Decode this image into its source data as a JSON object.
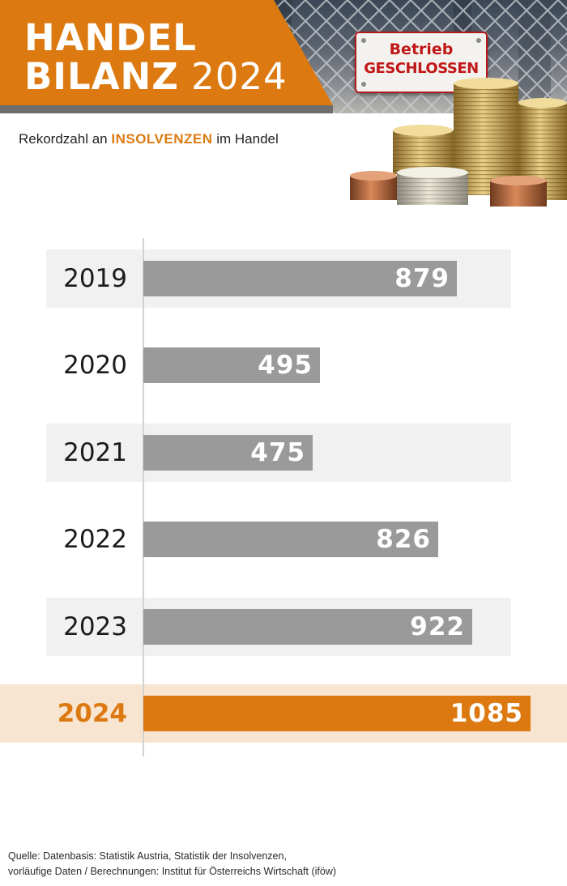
{
  "header": {
    "title_line1": "HANDEL",
    "title_line2_bold": "BILANZ",
    "title_line2_light": "2024",
    "subtitle_prefix": "Rekordzahl an",
    "subtitle_accent": "INSOLVENZEN",
    "subtitle_suffix": "im Handel",
    "sign_line1": "Betrieb",
    "sign_line2": "GESCHLOSSEN",
    "accent_color": "#dc7a11"
  },
  "chart_data": {
    "type": "bar",
    "orientation": "horizontal",
    "categories": [
      "2019",
      "2020",
      "2021",
      "2022",
      "2023",
      "2024"
    ],
    "values": [
      879,
      495,
      475,
      826,
      922,
      1085
    ],
    "highlight": "2024",
    "title": "",
    "xlabel": "",
    "ylabel": "",
    "xlim": [
      0,
      1085
    ],
    "grid": false,
    "legend": "none",
    "bar_color": "#9a9a9a",
    "highlight_color": "#dc7a11"
  },
  "footer": {
    "source_line1": "Quelle: Datenbasis: Statistik Austria, Statistik der Insolvenzen,",
    "source_line2": "vorläufige Daten / Berechnungen: Institut für Österreichs Wirtschaft (iföw)"
  }
}
